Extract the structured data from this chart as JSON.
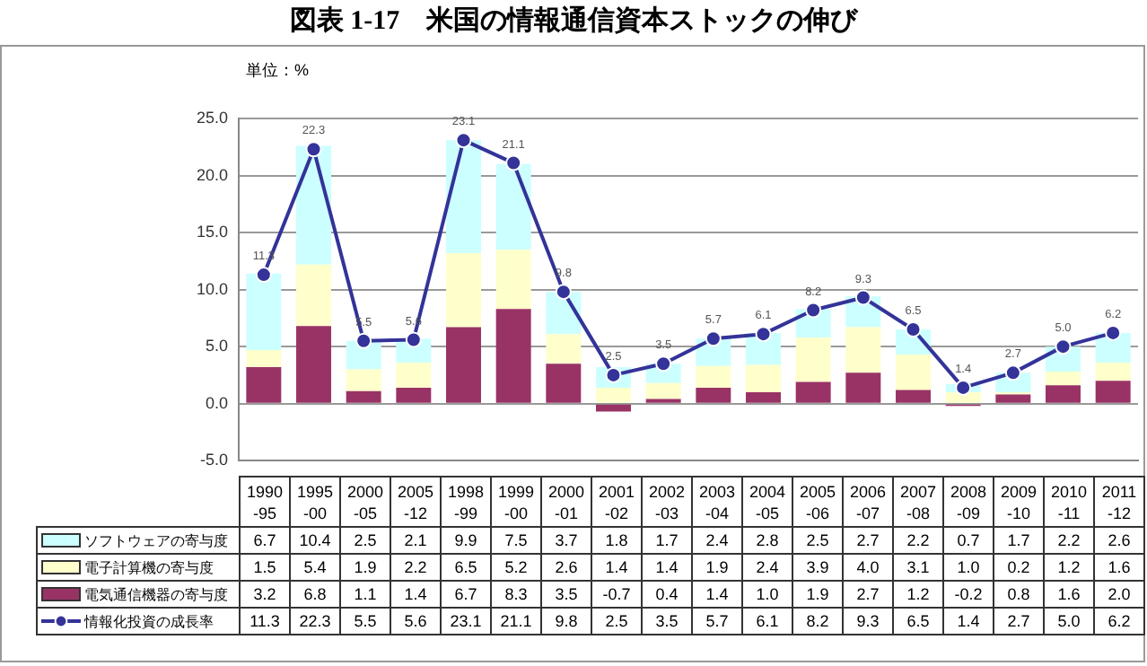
{
  "chart_data": {
    "type": "bar",
    "title": "図表 1-17　米国の情報通信資本ストックの伸び",
    "annotations": [
      "単位：%"
    ],
    "categories": [
      "1990-95",
      "1995-00",
      "2000-05",
      "2005-12",
      "1998-99",
      "1999-00",
      "2000-01",
      "2001-02",
      "2002-03",
      "2003-04",
      "2004-05",
      "2005-06",
      "2006-07",
      "2007-08",
      "2008-09",
      "2009-10",
      "2010-11",
      "2011-12"
    ],
    "stacked": true,
    "grid": "y",
    "legend": "bottom",
    "marker": "circle",
    "ylim": [
      -5,
      25
    ],
    "yticks": [
      {
        "value": -5,
        "label": "-5.0"
      },
      {
        "value": 0,
        "label": "0.0"
      },
      {
        "value": 5,
        "label": "5.0"
      },
      {
        "value": 10,
        "label": "10.0"
      },
      {
        "value": 15,
        "label": "15.0"
      },
      {
        "value": 20,
        "label": "20.0"
      },
      {
        "value": 25,
        "label": "25.0"
      }
    ],
    "series": [
      {
        "name": "電気通信機器の寄与度",
        "color": "#993366",
        "values": [
          3.2,
          6.8,
          1.1,
          1.4,
          6.7,
          8.3,
          3.5,
          -0.7,
          0.4,
          1.4,
          1.0,
          1.9,
          2.7,
          1.2,
          -0.2,
          0.8,
          1.6,
          2.0
        ],
        "value_labels": [
          "3.2",
          "6.8",
          "1.1",
          "1.4",
          "6.7",
          "8.3",
          "3.5",
          "-0.7",
          "0.4",
          "1.4",
          "1.0",
          "1.9",
          "2.7",
          "1.2",
          "-0.2",
          "0.8",
          "1.6",
          "2.0"
        ]
      },
      {
        "name": "電子計算機の寄与度",
        "color": "#ffffcc",
        "values": [
          1.5,
          5.4,
          1.9,
          2.2,
          6.5,
          5.2,
          2.6,
          1.4,
          1.4,
          1.9,
          2.4,
          3.9,
          4.0,
          3.1,
          1.0,
          0.2,
          1.2,
          1.6
        ],
        "value_labels": [
          "1.5",
          "5.4",
          "1.9",
          "2.2",
          "6.5",
          "5.2",
          "2.6",
          "1.4",
          "1.4",
          "1.9",
          "2.4",
          "3.9",
          "4.0",
          "3.1",
          "1.0",
          "0.2",
          "1.2",
          "1.6"
        ]
      },
      {
        "name": "ソフトウェアの寄与度",
        "color": "#ccffff",
        "values": [
          6.7,
          10.4,
          2.5,
          2.1,
          9.9,
          7.5,
          3.7,
          1.8,
          1.7,
          2.4,
          2.8,
          2.5,
          2.7,
          2.2,
          0.7,
          1.7,
          2.2,
          2.6
        ],
        "value_labels": [
          "6.7",
          "10.4",
          "2.5",
          "2.1",
          "9.9",
          "7.5",
          "3.7",
          "1.8",
          "1.7",
          "2.4",
          "2.8",
          "2.5",
          "2.7",
          "2.2",
          "0.7",
          "1.7",
          "2.2",
          "2.6"
        ]
      },
      {
        "name": "情報化投資の成長率",
        "type": "line",
        "color": "#333399",
        "values": [
          11.3,
          22.3,
          5.5,
          5.6,
          23.1,
          21.1,
          9.8,
          2.5,
          3.5,
          5.7,
          6.1,
          8.2,
          9.3,
          6.5,
          1.4,
          2.7,
          5.0,
          6.2
        ],
        "value_labels": [
          "11.3",
          "22.3",
          "5.5",
          "5.6",
          "23.1",
          "21.1",
          "9.8",
          "2.5",
          "3.5",
          "5.7",
          "6.1",
          "8.2",
          "9.3",
          "6.5",
          "1.4",
          "2.7",
          "5.0",
          "6.2"
        ]
      }
    ]
  }
}
